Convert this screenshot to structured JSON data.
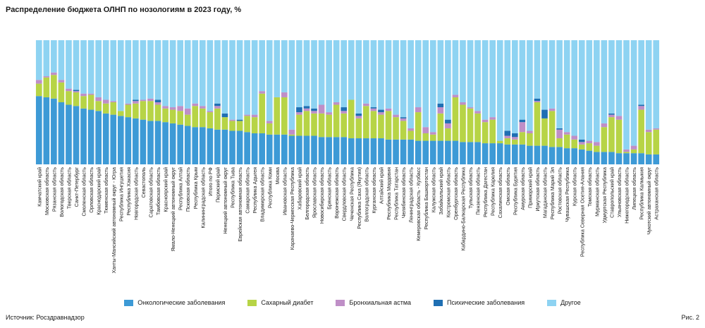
{
  "figure_label": "Рис. 2",
  "source": "Источник: Росздравнадзор",
  "chart_data": {
    "type": "bar",
    "stacked": true,
    "normalized_percent": true,
    "title": "Распределение бюджета ОЛНП по нозологиям в 2023 году, %",
    "xlabel": "",
    "ylabel": "",
    "ylim": [
      0,
      100
    ],
    "legend_position": "bottom",
    "colors": {
      "onco": "#3d9ad6",
      "diabetes": "#b7d446",
      "asthma": "#bf8fc7",
      "mental": "#1f6fb3",
      "other": "#8ed3f2"
    },
    "series": [
      {
        "key": "onco",
        "name": "Онкологические заболевания"
      },
      {
        "key": "diabetes",
        "name": "Сахарный диабет"
      },
      {
        "key": "asthma",
        "name": "Бронхиальная астма"
      },
      {
        "key": "mental",
        "name": "Психические заболевания"
      },
      {
        "key": "other",
        "name": "Другое"
      }
    ],
    "categories": [
      "Камчатский край",
      "Московская область",
      "Рязанская область",
      "Вологодская область",
      "Тверская область",
      "Санкт-Петербург",
      "Смоленская область",
      "Орловская область",
      "Краснодарский край",
      "Тюменская область",
      "Ханты-Мансийский автономный округ - Югра",
      "Республика Ингушетия",
      "Республика Хакасия",
      "Новгородская область",
      "Севастополь",
      "Саратовская область",
      "Тамбовская область",
      "Красноярский край",
      "Ямало-Ненецкий автономный округ",
      "Республика Алтай",
      "Псковская область",
      "Республика Крым",
      "Калининградская область",
      "Итого по РФ",
      "Пермский край",
      "Ненецкий автономный округ",
      "Республика Тыва",
      "Еврейская автономная область",
      "Самарская область",
      "Республика Адыгея",
      "Владимирская область",
      "Республика Коми",
      "Москва",
      "Ивановская область",
      "Карачаево-Черкесская Республика",
      "Хабаровский край",
      "Белгородская область",
      "Ярославская область",
      "Новосибирская область",
      "Брянская область",
      "Воронежская область",
      "Свердловская область",
      "Чеченская Республика",
      "Республика Саха (Якутия)",
      "Волгоградская область",
      "Курганская область",
      "Алтайский край",
      "Республика Мордовия",
      "Республика Татарстан",
      "Челябинская область",
      "Ленинградская область",
      "Кемеровская область - Кузбасс",
      "Республика Башкортостан",
      "Калужская область",
      "Забайкальский край",
      "Костромская область",
      "Оренбургская область",
      "Кабардино-Балкарская Республика",
      "Тульская область",
      "Пензенская область",
      "Республика Дагестан",
      "Республика Карелия",
      "Сахалинская область",
      "Омская область",
      "Республика Бурятия",
      "Амурская область",
      "Приморский край",
      "Иркутская область",
      "Магаданская область",
      "Республика Марий Эл",
      "Ростовская область",
      "Чувашская Республика",
      "Курская область",
      "Республика Северная Осетия-Алания",
      "Томская область",
      "Мурманская область",
      "Удмуртская Республика",
      "Ставропольский край",
      "Ульяновская область",
      "Нижегородская область",
      "Липецкая область",
      "Республика Калмыкия",
      "Чукотский автономный округ",
      "Астраханская область"
    ],
    "values": {
      "onco": [
        55,
        54,
        53,
        50,
        48,
        47,
        45,
        44,
        43,
        41,
        40,
        39,
        38,
        37,
        36,
        35,
        35,
        34,
        33,
        32,
        31,
        30,
        30,
        29,
        28,
        28,
        27,
        27,
        26,
        25,
        25,
        24,
        24,
        24,
        23,
        23,
        23,
        23,
        22,
        22,
        22,
        22,
        21,
        21,
        21,
        21,
        21,
        20,
        20,
        20,
        20,
        19,
        19,
        19,
        19,
        19,
        19,
        18,
        18,
        18,
        17,
        17,
        17,
        16,
        16,
        16,
        15,
        15,
        15,
        14,
        14,
        13,
        13,
        12,
        11,
        10,
        10,
        10,
        9,
        9,
        9,
        9,
        8,
        8
      ],
      "diabetes": [
        10,
        16,
        19,
        16,
        11,
        11,
        10,
        12,
        8,
        8,
        10,
        4,
        10,
        12,
        15,
        16,
        13,
        11,
        11,
        11,
        9,
        17,
        15,
        13,
        17,
        10,
        8,
        8,
        13,
        13,
        32,
        9,
        30,
        30,
        1,
        17,
        20,
        18,
        19,
        18,
        26,
        19,
        31,
        16,
        26,
        22,
        19,
        23,
        18,
        15,
        7,
        23,
        6,
        5,
        22,
        10,
        35,
        30,
        27,
        23,
        17,
        19,
        2,
        5,
        4,
        10,
        10,
        35,
        22,
        29,
        7,
        11,
        7,
        4,
        6,
        5,
        20,
        28,
        27,
        1,
        3,
        35,
        18,
        20
      ],
      "asthma": [
        3,
        1,
        2,
        2,
        2,
        1,
        2,
        1,
        3,
        3,
        1,
        0,
        1,
        2,
        1,
        2,
        2,
        2,
        2,
        4,
        5,
        2,
        2,
        1,
        2,
        0,
        1,
        0,
        1,
        2,
        2,
        2,
        0,
        4,
        4,
        2,
        2,
        2,
        7,
        2,
        2,
        2,
        0,
        2,
        2,
        2,
        2,
        2,
        2,
        2,
        2,
        4,
        5,
        2,
        5,
        4,
        2,
        2,
        1,
        2,
        2,
        2,
        0,
        2,
        2,
        8,
        2,
        1,
        0,
        2,
        7,
        2,
        3,
        2,
        2,
        3,
        3,
        2,
        3,
        2,
        3,
        3,
        2,
        1
      ],
      "mental": [
        0,
        0,
        0,
        0,
        0,
        1,
        0,
        0,
        0,
        0,
        0,
        0,
        0,
        1,
        0,
        0,
        2,
        0,
        0,
        0,
        0,
        0,
        0,
        0,
        2,
        3,
        0,
        1,
        0,
        0,
        0,
        0,
        0,
        0,
        0,
        4,
        2,
        2,
        0,
        0,
        0,
        3,
        0,
        2,
        0,
        1,
        2,
        0,
        0,
        1,
        0,
        0,
        0,
        0,
        3,
        3,
        0,
        0,
        0,
        0,
        0,
        0,
        0,
        4,
        3,
        2,
        0,
        2,
        7,
        0,
        1,
        0,
        0,
        2,
        0,
        0,
        0,
        1,
        0,
        0,
        0,
        1,
        0,
        0
      ]
    }
  }
}
